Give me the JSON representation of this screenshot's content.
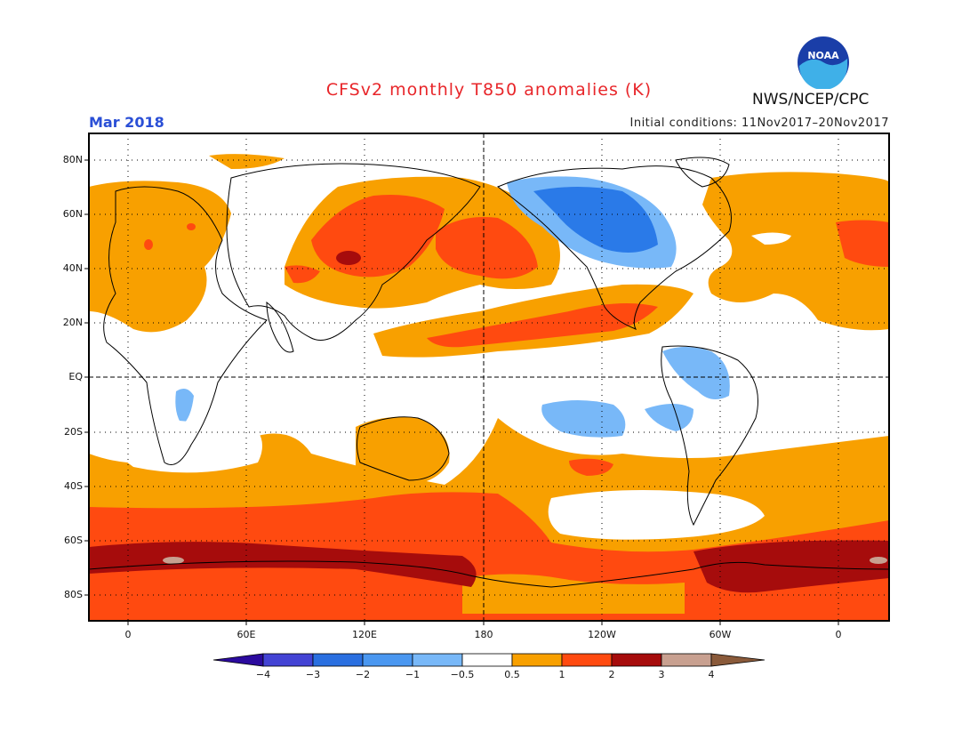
{
  "header": {
    "title": "CFSv2 monthly T850 anomalies (K)",
    "month": "Mar 2018",
    "initial_conditions": "Initial conditions: 11Nov2017–20Nov2017",
    "agency": "NWS/NCEP/CPC",
    "logo_text": "NOAA"
  },
  "axes": {
    "lat_labels": [
      "80N",
      "60N",
      "40N",
      "20N",
      "EQ",
      "20S",
      "40S",
      "60S",
      "80S"
    ],
    "lon_labels": [
      "0",
      "60E",
      "120E",
      "180",
      "120W",
      "60W",
      "0"
    ]
  },
  "legend": {
    "labels": [
      "−4",
      "−3",
      "−2",
      "−1",
      "−0.5",
      "0.5",
      "1",
      "2",
      "3",
      "4"
    ],
    "colors": [
      "#2b0a9e",
      "#4343d4",
      "#2a6fe0",
      "#4a97f0",
      "#78b8f8",
      "#ffffff",
      "#f8a000",
      "#ff4a10",
      "#a60c0c",
      "#c8a090",
      "#8a5a3a"
    ]
  },
  "colors": {
    "title": "#e8262a",
    "month": "#2a4fd6",
    "orange": "#f8a000",
    "red": "#ff4a10",
    "darkred": "#a60c0c",
    "lightblue": "#78b8f8",
    "blue": "#4a97f0",
    "medblue": "#2a7ae8",
    "tan": "#c8a090"
  }
}
